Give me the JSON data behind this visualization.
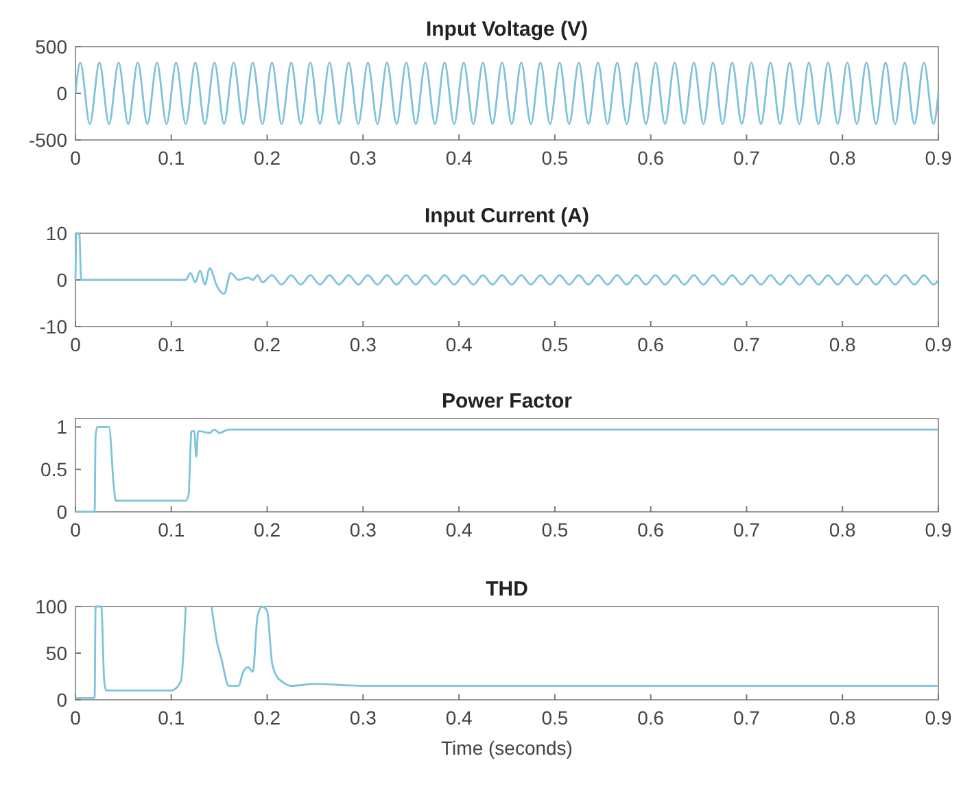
{
  "chart_data": [
    {
      "type": "line",
      "title": "Input Voltage (V)",
      "xlim": [
        0,
        0.9
      ],
      "xticks": [
        0,
        0.1,
        0.2,
        0.3,
        0.4,
        0.5,
        0.6,
        0.7,
        0.8,
        0.9
      ],
      "ylim": [
        -500,
        500
      ],
      "yticks": [
        {
          "value": -500,
          "label": "-500"
        },
        0,
        500
      ],
      "grid": false,
      "series": [
        {
          "color": "#7ec3da",
          "x": [
            0,
            0.005,
            0.015,
            0.025,
            0.035,
            0.045,
            0.055,
            0.065,
            0.075,
            0.085,
            0.095,
            0.105,
            0.115,
            0.125,
            0.135,
            0.145,
            0.155,
            0.165,
            0.175,
            0.185,
            0.195,
            0.205,
            0.215,
            0.225,
            0.235,
            0.245,
            0.255,
            0.265,
            0.275,
            0.285,
            0.295,
            0.305,
            0.315,
            0.325,
            0.335,
            0.345,
            0.355,
            0.365,
            0.375,
            0.385,
            0.395,
            0.405,
            0.415,
            0.425,
            0.435,
            0.445,
            0.455,
            0.465,
            0.475,
            0.485,
            0.495,
            0.505,
            0.515,
            0.525,
            0.535,
            0.545,
            0.555,
            0.565,
            0.575,
            0.585,
            0.595,
            0.605,
            0.615,
            0.625,
            0.635,
            0.645,
            0.655,
            0.665,
            0.675,
            0.685,
            0.695,
            0.705,
            0.715,
            0.725,
            0.735,
            0.745,
            0.755,
            0.765,
            0.775,
            0.785,
            0.795,
            0.805,
            0.815,
            0.825,
            0.835,
            0.845,
            0.855,
            0.865,
            0.875,
            0.885,
            0.895,
            0.9
          ],
          "values": [
            0,
            330,
            -330,
            330,
            -330,
            330,
            -330,
            330,
            -330,
            330,
            -330,
            330,
            -330,
            330,
            -330,
            330,
            -330,
            330,
            -330,
            330,
            -330,
            330,
            -330,
            330,
            -330,
            330,
            -330,
            330,
            -330,
            330,
            -330,
            330,
            -330,
            330,
            -330,
            330,
            -330,
            330,
            -330,
            330,
            -330,
            330,
            -330,
            330,
            -330,
            330,
            -330,
            330,
            -330,
            330,
            -330,
            330,
            -330,
            330,
            -330,
            330,
            -330,
            330,
            -330,
            330,
            -330,
            330,
            -330,
            330,
            -330,
            330,
            -330,
            330,
            -330,
            330,
            -330,
            330,
            -330,
            330,
            -330,
            330,
            -330,
            330,
            -330,
            330,
            -330,
            330,
            -330,
            330,
            -330,
            330,
            -330,
            330,
            -330,
            330,
            -330,
            0
          ]
        }
      ]
    },
    {
      "type": "line",
      "title": "Input Current (A)",
      "xlim": [
        0,
        0.9
      ],
      "xticks": [
        0,
        0.1,
        0.2,
        0.3,
        0.4,
        0.5,
        0.6,
        0.7,
        0.8,
        0.9
      ],
      "ylim": [
        -10,
        10
      ],
      "yticks": [
        -10,
        0,
        10
      ],
      "grid": false,
      "series": [
        {
          "color": "#7ec3da",
          "x": [
            0,
            0.001,
            0.004,
            0.006,
            0.115,
            0.12,
            0.125,
            0.13,
            0.135,
            0.14,
            0.148,
            0.155,
            0.162,
            0.17,
            0.18,
            0.185,
            0.19,
            0.195,
            0.205,
            0.215,
            0.225,
            0.235,
            0.245,
            0.255,
            0.265,
            0.275,
            0.285,
            0.295,
            0.305,
            0.315,
            0.325,
            0.335,
            0.345,
            0.355,
            0.365,
            0.375,
            0.385,
            0.395,
            0.405,
            0.415,
            0.425,
            0.435,
            0.445,
            0.455,
            0.465,
            0.475,
            0.485,
            0.495,
            0.505,
            0.515,
            0.525,
            0.535,
            0.545,
            0.555,
            0.565,
            0.575,
            0.585,
            0.595,
            0.605,
            0.615,
            0.625,
            0.635,
            0.645,
            0.655,
            0.665,
            0.675,
            0.685,
            0.695,
            0.705,
            0.715,
            0.725,
            0.735,
            0.745,
            0.755,
            0.765,
            0.775,
            0.785,
            0.795,
            0.805,
            0.815,
            0.825,
            0.835,
            0.845,
            0.855,
            0.865,
            0.875,
            0.885,
            0.895,
            0.9
          ],
          "values": [
            0,
            10,
            10,
            0,
            0,
            1.5,
            -0.5,
            2,
            -1,
            2.5,
            -1.5,
            -3,
            1.5,
            0,
            0.5,
            0,
            1,
            -0.5,
            1,
            -1,
            1,
            -1,
            1,
            -1,
            1,
            -1,
            1,
            -1,
            1,
            -1,
            1,
            -1,
            1,
            -1,
            1,
            -1,
            1,
            -1,
            1,
            -1,
            1,
            -1,
            1,
            -1,
            1,
            -1,
            1,
            -1,
            1,
            -1,
            1,
            -1,
            1,
            -1,
            1,
            -1,
            1,
            -1,
            1,
            -1,
            1,
            -1,
            1,
            -1,
            1,
            -1,
            1,
            -1,
            1,
            -1,
            1,
            -1,
            1,
            -1,
            1,
            -1,
            1,
            -1,
            1,
            -1,
            1,
            -1,
            1,
            -1,
            1,
            -1,
            1,
            -1,
            0
          ]
        }
      ]
    },
    {
      "type": "line",
      "title": "Power Factor",
      "xlim": [
        0,
        0.9
      ],
      "xticks": [
        0,
        0.1,
        0.2,
        0.3,
        0.4,
        0.5,
        0.6,
        0.7,
        0.8,
        0.9
      ],
      "ylim": [
        0,
        1.1
      ],
      "yticks": [
        0,
        0.5,
        1
      ],
      "grid": false,
      "series": [
        {
          "color": "#7ec3da",
          "x": [
            0,
            0.02,
            0.021,
            0.023,
            0.035,
            0.04,
            0.042,
            0.115,
            0.118,
            0.121,
            0.124,
            0.126,
            0.128,
            0.13,
            0.14,
            0.145,
            0.15,
            0.16,
            0.9
          ],
          "values": [
            0,
            0,
            0.9,
            1,
            1,
            0.3,
            0.13,
            0.13,
            0.2,
            0.95,
            0.95,
            0.65,
            0.95,
            0.95,
            0.93,
            0.97,
            0.93,
            0.97,
            0.97
          ]
        }
      ]
    },
    {
      "type": "line",
      "title": "THD",
      "xlabel": "Time (seconds)",
      "xlim": [
        0,
        0.9
      ],
      "xticks": [
        0,
        0.1,
        0.2,
        0.3,
        0.4,
        0.5,
        0.6,
        0.7,
        0.8,
        0.9
      ],
      "ylim": [
        0,
        100
      ],
      "yticks": [
        0,
        50,
        100
      ],
      "grid": false,
      "series": [
        {
          "color": "#7ec3da",
          "x": [
            0,
            0.02,
            0.021,
            0.027,
            0.03,
            0.032,
            0.1,
            0.11,
            0.115,
            0.117,
            0.142,
            0.148,
            0.152,
            0.16,
            0.17,
            0.175,
            0.18,
            0.185,
            0.19,
            0.195,
            0.2,
            0.205,
            0.21,
            0.215,
            0.225,
            0.25,
            0.3,
            0.9
          ],
          "values": [
            2,
            2,
            100,
            100,
            20,
            10,
            10,
            20,
            100,
            null,
            100,
            60,
            45,
            15,
            15,
            30,
            35,
            30,
            90,
            100,
            95,
            40,
            25,
            20,
            15,
            17,
            15,
            15
          ]
        }
      ]
    }
  ]
}
